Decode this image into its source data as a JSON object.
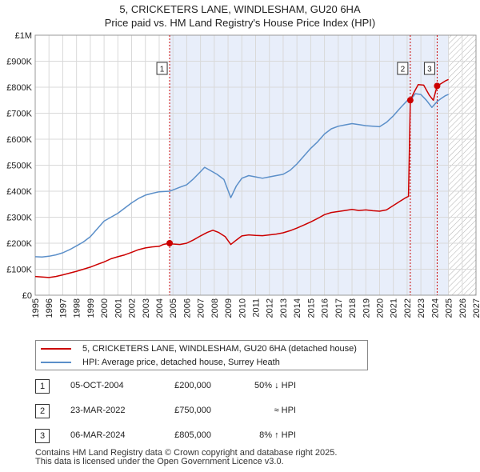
{
  "header": {
    "title": "5, CRICKETERS LANE, WINDLESHAM, GU20 6HA",
    "subtitle": "Price paid vs. HM Land Registry's House Price Index (HPI)"
  },
  "colors": {
    "property": "#cc0000",
    "hpi": "#5b8fc9",
    "shade": "#e8eefa",
    "grid": "#d9d9d9",
    "sale_marker_line": "#cc0000"
  },
  "chart_data": {
    "type": "line",
    "xlim": [
      1995,
      2027
    ],
    "ylim": [
      0,
      1000000
    ],
    "x_ticks": [
      "1995",
      "1996",
      "1997",
      "1998",
      "1999",
      "2000",
      "2001",
      "2002",
      "2003",
      "2004",
      "2005",
      "2006",
      "2007",
      "2008",
      "2009",
      "2010",
      "2011",
      "2012",
      "2013",
      "2014",
      "2015",
      "2016",
      "2017",
      "2018",
      "2019",
      "2020",
      "2021",
      "2022",
      "2023",
      "2024",
      "2025",
      "2026",
      "2027"
    ],
    "y_ticks": [
      {
        "value": 0,
        "label": "£0"
      },
      {
        "value": 100000,
        "label": "£100K"
      },
      {
        "value": 200000,
        "label": "£200K"
      },
      {
        "value": 300000,
        "label": "£300K"
      },
      {
        "value": 400000,
        "label": "£400K"
      },
      {
        "value": 500000,
        "label": "£500K"
      },
      {
        "value": 600000,
        "label": "£600K"
      },
      {
        "value": 700000,
        "label": "£700K"
      },
      {
        "value": 800000,
        "label": "£800K"
      },
      {
        "value": 900000,
        "label": "£900K"
      },
      {
        "value": 1000000,
        "label": "£1M"
      }
    ],
    "shaded_period": [
      2004.76,
      2025.0
    ],
    "hatched_period": [
      2025.0,
      2027.0
    ],
    "series": [
      {
        "name": "5, CRICKETERS LANE, WINDLESHAM, GU20 6HA (detached house)",
        "key": "property",
        "points": [
          [
            1995.0,
            72000
          ],
          [
            1995.5,
            70000
          ],
          [
            1996.0,
            68000
          ],
          [
            1996.5,
            72000
          ],
          [
            1997.0,
            78000
          ],
          [
            1997.5,
            85000
          ],
          [
            1998.0,
            92000
          ],
          [
            1998.5,
            100000
          ],
          [
            1999.0,
            108000
          ],
          [
            1999.5,
            118000
          ],
          [
            2000.0,
            128000
          ],
          [
            2000.5,
            140000
          ],
          [
            2001.0,
            148000
          ],
          [
            2001.5,
            155000
          ],
          [
            2002.0,
            165000
          ],
          [
            2002.5,
            175000
          ],
          [
            2003.0,
            182000
          ],
          [
            2003.5,
            186000
          ],
          [
            2004.0,
            188000
          ],
          [
            2004.3,
            195000
          ],
          [
            2004.76,
            200000
          ],
          [
            2005.0,
            197000
          ],
          [
            2005.5,
            195000
          ],
          [
            2006.0,
            200000
          ],
          [
            2006.5,
            213000
          ],
          [
            2007.0,
            228000
          ],
          [
            2007.5,
            242000
          ],
          [
            2007.9,
            250000
          ],
          [
            2008.3,
            242000
          ],
          [
            2008.8,
            225000
          ],
          [
            2009.2,
            195000
          ],
          [
            2009.6,
            212000
          ],
          [
            2010.0,
            228000
          ],
          [
            2010.5,
            232000
          ],
          [
            2011.0,
            230000
          ],
          [
            2011.5,
            229000
          ],
          [
            2012.0,
            232000
          ],
          [
            2012.5,
            235000
          ],
          [
            2013.0,
            240000
          ],
          [
            2013.5,
            248000
          ],
          [
            2014.0,
            258000
          ],
          [
            2014.5,
            270000
          ],
          [
            2015.0,
            282000
          ],
          [
            2015.5,
            295000
          ],
          [
            2016.0,
            310000
          ],
          [
            2016.5,
            318000
          ],
          [
            2017.0,
            322000
          ],
          [
            2017.5,
            326000
          ],
          [
            2018.0,
            330000
          ],
          [
            2018.5,
            326000
          ],
          [
            2019.0,
            328000
          ],
          [
            2019.5,
            325000
          ],
          [
            2020.0,
            323000
          ],
          [
            2020.5,
            328000
          ],
          [
            2021.0,
            345000
          ],
          [
            2021.5,
            362000
          ],
          [
            2021.9,
            375000
          ],
          [
            2022.1,
            380000
          ],
          [
            2022.23,
            750000
          ],
          [
            2022.5,
            780000
          ],
          [
            2022.8,
            810000
          ],
          [
            2023.2,
            808000
          ],
          [
            2023.6,
            770000
          ],
          [
            2023.9,
            750000
          ],
          [
            2024.18,
            805000
          ],
          [
            2024.5,
            815000
          ],
          [
            2024.8,
            825000
          ],
          [
            2025.0,
            830000
          ]
        ]
      },
      {
        "name": "HPI: Average price, detached house, Surrey Heath",
        "key": "hpi",
        "points": [
          [
            1995.0,
            148000
          ],
          [
            1995.5,
            147000
          ],
          [
            1996.0,
            150000
          ],
          [
            1996.5,
            155000
          ],
          [
            1997.0,
            163000
          ],
          [
            1997.5,
            175000
          ],
          [
            1998.0,
            190000
          ],
          [
            1998.5,
            205000
          ],
          [
            1999.0,
            225000
          ],
          [
            1999.5,
            255000
          ],
          [
            2000.0,
            285000
          ],
          [
            2000.5,
            300000
          ],
          [
            2001.0,
            315000
          ],
          [
            2001.5,
            335000
          ],
          [
            2002.0,
            355000
          ],
          [
            2002.5,
            372000
          ],
          [
            2003.0,
            385000
          ],
          [
            2003.5,
            392000
          ],
          [
            2004.0,
            398000
          ],
          [
            2004.76,
            400000
          ],
          [
            2005.0,
            405000
          ],
          [
            2005.5,
            415000
          ],
          [
            2006.0,
            425000
          ],
          [
            2006.5,
            448000
          ],
          [
            2007.0,
            475000
          ],
          [
            2007.3,
            492000
          ],
          [
            2007.7,
            480000
          ],
          [
            2008.2,
            465000
          ],
          [
            2008.7,
            445000
          ],
          [
            2009.2,
            375000
          ],
          [
            2009.6,
            420000
          ],
          [
            2010.0,
            450000
          ],
          [
            2010.5,
            460000
          ],
          [
            2011.0,
            455000
          ],
          [
            2011.5,
            450000
          ],
          [
            2012.0,
            455000
          ],
          [
            2012.5,
            460000
          ],
          [
            2013.0,
            465000
          ],
          [
            2013.5,
            480000
          ],
          [
            2014.0,
            505000
          ],
          [
            2014.5,
            535000
          ],
          [
            2015.0,
            565000
          ],
          [
            2015.5,
            590000
          ],
          [
            2016.0,
            620000
          ],
          [
            2016.5,
            640000
          ],
          [
            2017.0,
            650000
          ],
          [
            2017.5,
            655000
          ],
          [
            2018.0,
            660000
          ],
          [
            2018.5,
            656000
          ],
          [
            2019.0,
            652000
          ],
          [
            2019.5,
            650000
          ],
          [
            2020.0,
            648000
          ],
          [
            2020.5,
            665000
          ],
          [
            2021.0,
            690000
          ],
          [
            2021.5,
            720000
          ],
          [
            2022.0,
            748000
          ],
          [
            2022.23,
            750000
          ],
          [
            2022.6,
            775000
          ],
          [
            2023.0,
            772000
          ],
          [
            2023.4,
            750000
          ],
          [
            2023.8,
            722000
          ],
          [
            2024.18,
            745000
          ],
          [
            2024.5,
            758000
          ],
          [
            2024.8,
            768000
          ],
          [
            2025.0,
            772000
          ]
        ]
      }
    ],
    "sales": [
      {
        "id": "1",
        "x": 2004.76,
        "price": 200000,
        "date": "05-OCT-2004",
        "price_label": "£200,000",
        "hpi_note": "50% ↓ HPI"
      },
      {
        "id": "2",
        "x": 2022.23,
        "price": 750000,
        "date": "23-MAR-2022",
        "price_label": "£750,000",
        "hpi_note": "≈ HPI"
      },
      {
        "id": "3",
        "x": 2024.18,
        "price": 805000,
        "date": "06-MAR-2024",
        "price_label": "£805,000",
        "hpi_note": "8% ↑ HPI"
      }
    ]
  },
  "legend": {
    "property_label": "5, CRICKETERS LANE, WINDLESHAM, GU20 6HA (detached house)",
    "hpi_label": "HPI: Average price, detached house, Surrey Heath"
  },
  "footer": {
    "line1": "Contains HM Land Registry data © Crown copyright and database right 2025.",
    "line2": "This data is licensed under the Open Government Licence v3.0."
  }
}
